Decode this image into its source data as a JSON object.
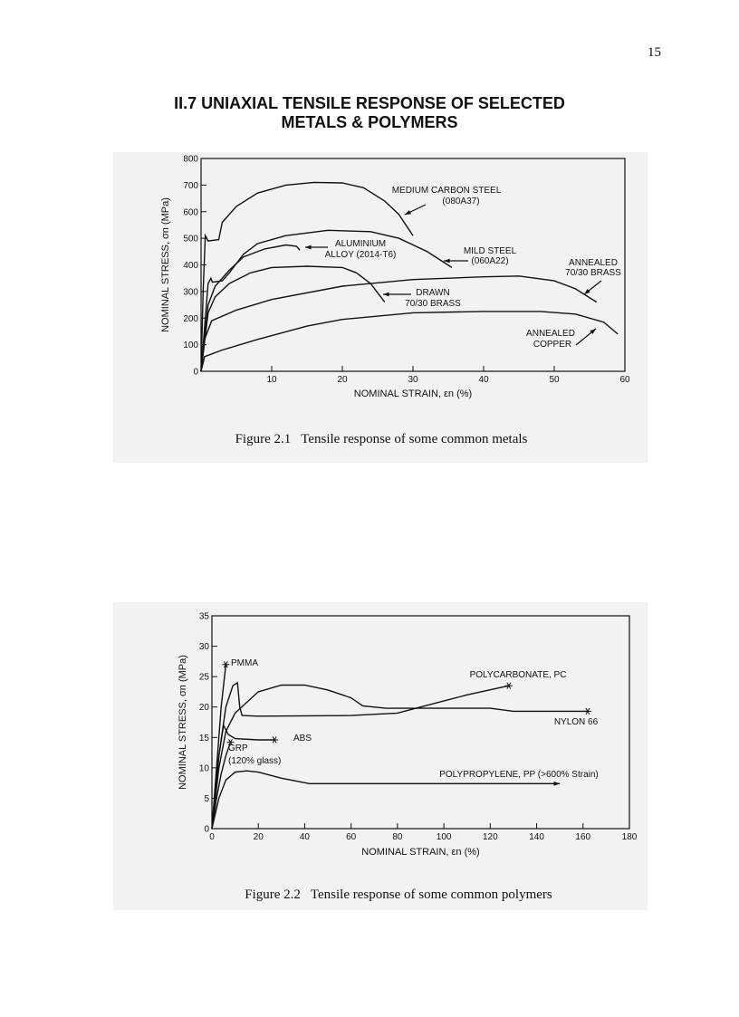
{
  "page_number": "15",
  "heading": [
    "II.7  UNIAXIAL TENSILE RESPONSE OF SELECTED",
    "METALS & POLYMERS"
  ],
  "chart_data": [
    {
      "type": "line",
      "caption": "Figure 2.1   Tensile response of some common metals",
      "xlabel": "NOMINAL STRAIN, εn (%)",
      "ylabel": "NOMINAL STRESS, σn (MPa)",
      "xlim": [
        0,
        60
      ],
      "ylim": [
        0,
        800
      ],
      "xticks": [
        10,
        20,
        30,
        40,
        50,
        60
      ],
      "yticks": [
        0,
        100,
        200,
        300,
        400,
        500,
        600,
        700,
        800
      ],
      "color": "#111111",
      "series": [
        {
          "label": [
            "MEDIUM CARBON STEEL",
            "(080A37)"
          ],
          "x": [
            0,
            0.3,
            0.6,
            1,
            2.5,
            3,
            5,
            8,
            12,
            16,
            20,
            23,
            26,
            28,
            30
          ],
          "y": [
            0,
            300,
            510,
            490,
            495,
            560,
            620,
            670,
            700,
            710,
            708,
            690,
            640,
            590,
            510
          ]
        },
        {
          "label": [
            "ALUMINIUM",
            "ALLOY (2014-T6)"
          ],
          "x": [
            0,
            1,
            2,
            4,
            6,
            9,
            12,
            13.5,
            14
          ],
          "y": [
            0,
            250,
            320,
            380,
            430,
            460,
            475,
            470,
            455
          ]
        },
        {
          "label": [
            "MILD STEEL",
            "(060A22)"
          ],
          "x": [
            0,
            1,
            1.4,
            1.6,
            3,
            4,
            6,
            8,
            12,
            18,
            24,
            28,
            32,
            35.5
          ],
          "y": [
            0,
            330,
            350,
            335,
            340,
            370,
            440,
            480,
            510,
            530,
            525,
            500,
            450,
            390
          ]
        },
        {
          "label": [
            "DRAWN",
            "70/30 BRASS"
          ],
          "x": [
            0,
            1,
            2,
            4,
            7,
            10,
            15,
            20,
            22,
            24,
            26
          ],
          "y": [
            0,
            220,
            280,
            330,
            370,
            390,
            395,
            390,
            370,
            330,
            260
          ]
        },
        {
          "label": [
            "ANNEALED",
            "70/30 BRASS"
          ],
          "x": [
            0,
            0.5,
            1.5,
            5,
            10,
            20,
            30,
            40,
            45,
            50,
            53,
            56
          ],
          "y": [
            0,
            120,
            190,
            230,
            270,
            320,
            345,
            355,
            358,
            340,
            310,
            260
          ]
        },
        {
          "label": [
            "ANNEALED",
            "COPPER"
          ],
          "x": [
            0,
            0.5,
            3,
            8,
            15,
            20,
            30,
            40,
            48,
            53,
            57,
            59
          ],
          "y": [
            0,
            55,
            80,
            120,
            170,
            195,
            220,
            225,
            225,
            215,
            185,
            140
          ]
        }
      ]
    },
    {
      "type": "line",
      "caption": "Figure 2.2   Tensile response of some common polymers",
      "xlabel": "NOMINAL STRAIN, εn (%)",
      "ylabel": "NOMINAL STRESS, σn (MPa)",
      "xlim": [
        0,
        180
      ],
      "ylim": [
        0,
        35
      ],
      "xticks": [
        0,
        20,
        40,
        60,
        80,
        100,
        120,
        140,
        160,
        180
      ],
      "yticks": [
        0,
        5,
        10,
        15,
        20,
        25,
        30,
        35
      ],
      "color": "#111111",
      "series": [
        {
          "label": [
            "PMMA"
          ],
          "end_marker": "star",
          "x": [
            0,
            2,
            4,
            6
          ],
          "y": [
            0,
            10,
            20,
            27
          ]
        },
        {
          "label": [
            "POLYCARBONATE, PC"
          ],
          "end_marker": "star",
          "x": [
            0,
            3,
            6,
            9,
            11,
            12,
            13,
            20,
            60,
            80,
            90,
            110,
            128
          ],
          "y": [
            0,
            12,
            20,
            23.5,
            24,
            20,
            18.6,
            18.5,
            18.6,
            19,
            20,
            22,
            23.5
          ]
        },
        {
          "label": [
            "NYLON 66"
          ],
          "end_marker": "star",
          "x": [
            0,
            3,
            6,
            10,
            20,
            30,
            40,
            50,
            60,
            65,
            75,
            120,
            130,
            162
          ],
          "y": [
            0,
            10,
            16,
            19,
            22.5,
            23.6,
            23.6,
            22.8,
            21.5,
            20.2,
            19.8,
            19.8,
            19.3,
            19.3
          ]
        },
        {
          "label": [
            "ABS"
          ],
          "end_marker": "star",
          "x": [
            0,
            3,
            5,
            7,
            10,
            20,
            27
          ],
          "y": [
            0,
            12,
            17,
            15.5,
            14.8,
            14.6,
            14.6
          ]
        },
        {
          "label": [
            "GRP",
            "(120% glass)"
          ],
          "end_marker": "star",
          "x": [
            0,
            2,
            4,
            6,
            8
          ],
          "y": [
            0,
            5,
            9,
            12,
            14.2
          ]
        },
        {
          "label": [
            "POLYPROPYLENE, PP (>600% Strain)"
          ],
          "end_marker": "arrow",
          "x": [
            0,
            3,
            6,
            10,
            15,
            20,
            30,
            42,
            80,
            150
          ],
          "y": [
            0,
            5,
            8,
            9.3,
            9.5,
            9.3,
            8.3,
            7.4,
            7.4,
            7.4
          ]
        }
      ]
    }
  ]
}
